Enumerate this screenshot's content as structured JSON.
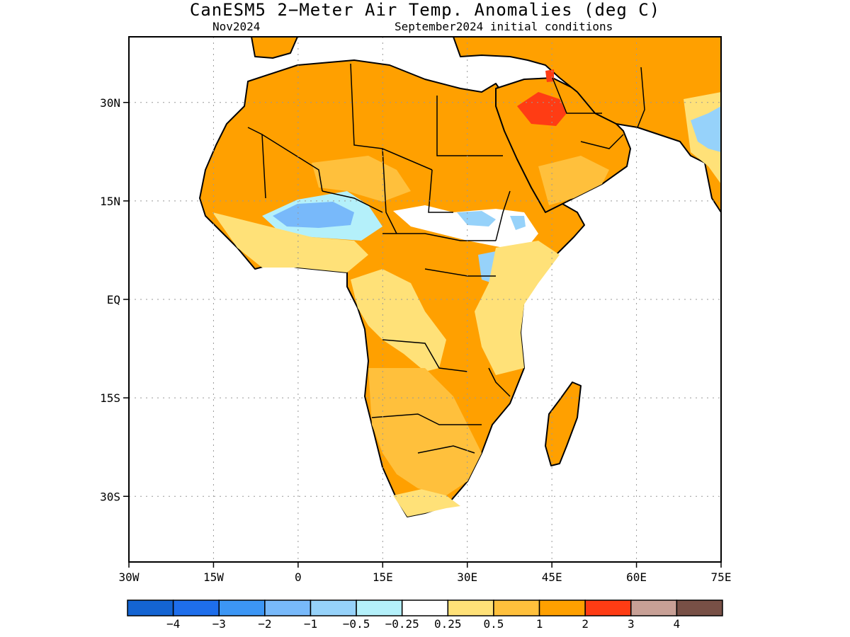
{
  "title": "CanESM5 2−Meter Air Temp. Anomalies (deg C)",
  "subtitle_left": "Nov2024",
  "subtitle_right": "September2024 initial conditions",
  "map": {
    "lon_range": [
      -30,
      75
    ],
    "lat_range": [
      -40,
      40
    ],
    "lon_ticks": [
      {
        "value": -30,
        "label": "30W"
      },
      {
        "value": -15,
        "label": "15W"
      },
      {
        "value": 0,
        "label": "0"
      },
      {
        "value": 15,
        "label": "15E"
      },
      {
        "value": 30,
        "label": "30E"
      },
      {
        "value": 45,
        "label": "45E"
      },
      {
        "value": 60,
        "label": "60E"
      },
      {
        "value": 75,
        "label": "75E"
      }
    ],
    "lat_ticks": [
      {
        "value": 30,
        "label": "30N"
      },
      {
        "value": 15,
        "label": "15N"
      },
      {
        "value": 0,
        "label": "EQ"
      },
      {
        "value": -15,
        "label": "15S"
      },
      {
        "value": -30,
        "label": "30S"
      }
    ],
    "grid": "dotted",
    "land_fill_color": "#f9a000",
    "coastline_color": "#000000"
  },
  "colorbar": {
    "colors": [
      "#1464d2",
      "#1e6eeb",
      "#3c96f5",
      "#78b9fa",
      "#96d2fa",
      "#b4f0fa",
      "#ffffff",
      "#ffe178",
      "#ffc03c",
      "#ffa000",
      "#ff3c14",
      "#c8a096",
      "#785046"
    ],
    "labels": [
      "−4",
      "−3",
      "−2",
      "−1",
      "−0.5",
      "−0.25",
      "0.25",
      "0.5",
      "1",
      "2",
      "3",
      "4"
    ]
  },
  "anomaly_regions": [
    {
      "name": "Sahel cold anomaly",
      "level": "-1",
      "color": "#78b9fa"
    },
    {
      "name": "Iraq warm anomaly",
      "level": "2 to 3",
      "color": "#ff3c14"
    },
    {
      "name": "India cold anomaly",
      "level": "-0.5",
      "color": "#96d2fa"
    }
  ]
}
